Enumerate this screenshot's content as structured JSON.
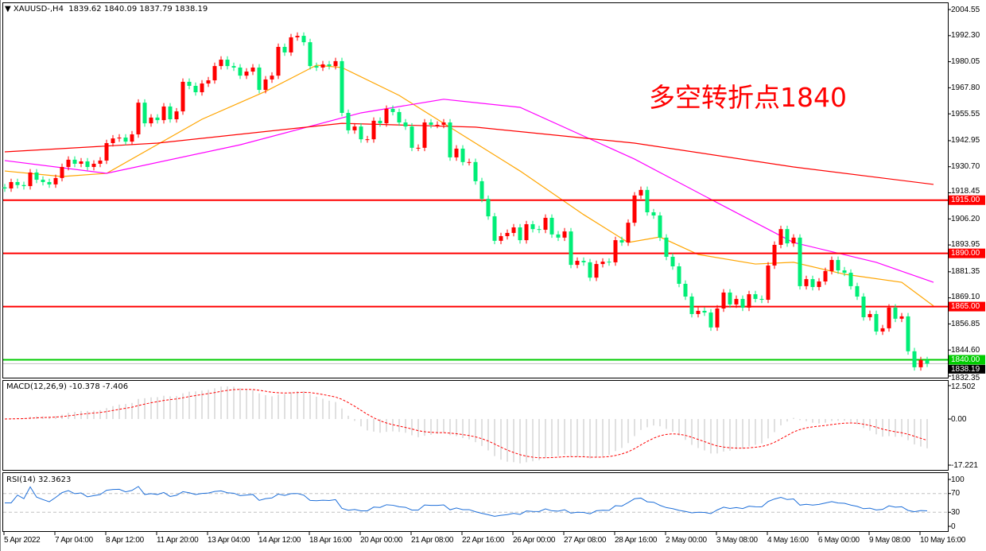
{
  "header": {
    "symbol_label": "XAUUSD-,H4",
    "ohlc": "1839.62 1840.09 1837.79 1838.19"
  },
  "annotation": "多空转折点1840",
  "colors": {
    "up": "#ff0000",
    "down": "#00ee77",
    "ma_fast": "#ffa500",
    "ma_mid": "#ff00ff",
    "ma_slow": "#ff0000",
    "level": "#ff0000",
    "level_support": "#00cc00",
    "macd_hist": "#c0c0c0",
    "macd_signal": "#ff0000",
    "rsi": "#1e6fd9"
  },
  "chart_data": [
    {
      "type": "candlestick",
      "title": "XAUUSD-,H4",
      "ylim": [
        1832.35,
        2004.55
      ],
      "y_ticks": [
        "2004.55",
        "1992.30",
        "1980.05",
        "1967.80",
        "1955.55",
        "1942.95",
        "1930.70",
        "1918.45",
        "1906.20",
        "1893.95",
        "1881.35",
        "1869.10",
        "1856.85",
        "1844.60",
        "1832.35"
      ],
      "x_tick_labels": [
        "5 Apr 2022",
        "7 Apr 04:00",
        "8 Apr 12:00",
        "11 Apr 20:00",
        "13 Apr 04:00",
        "14 Apr 12:00",
        "18 Apr 16:00",
        "20 Apr 00:00",
        "21 Apr 08:00",
        "22 Apr 16:00",
        "26 Apr 00:00",
        "27 Apr 08:00",
        "28 Apr 16:00",
        "2 May 00:00",
        "3 May 08:00",
        "4 May 16:00",
        "6 May 00:00",
        "9 May 08:00",
        "10 May 16:00"
      ],
      "first_open": 1921.0,
      "closes": [
        1920.5,
        1923.5,
        1922.1,
        1921.6,
        1928.0,
        1924.6,
        1923.5,
        1922.4,
        1925.4,
        1930.6,
        1934.0,
        1932.1,
        1933.2,
        1930.6,
        1932.1,
        1933.6,
        1941.8,
        1944.0,
        1944.4,
        1942.5,
        1945.9,
        1960.8,
        1951.1,
        1953.8,
        1952.6,
        1959.0,
        1953.0,
        1956.7,
        1970.6,
        1968.7,
        1965.7,
        1969.8,
        1971.3,
        1978.0,
        1981.0,
        1978.0,
        1977.3,
        1973.5,
        1975.4,
        1977.3,
        1966.8,
        1971.7,
        1973.5,
        1987.0,
        1984.4,
        1991.5,
        1992.2,
        1989.2,
        1978.0,
        1977.3,
        1978.8,
        1978.0,
        1980.3,
        1956.0,
        1947.8,
        1949.6,
        1943.6,
        1943.6,
        1952.3,
        1951.1,
        1957.9,
        1956.4,
        1951.5,
        1949.6,
        1939.6,
        1939.6,
        1951.5,
        1950.4,
        1950.4,
        1951.5,
        1935.1,
        1939.2,
        1932.9,
        1932.9,
        1923.9,
        1915.6,
        1907.4,
        1895.9,
        1898.1,
        1899.6,
        1902.2,
        1896.2,
        1903.7,
        1901.4,
        1901.1,
        1906.7,
        1898.9,
        1897.4,
        1900.3,
        1884.6,
        1886.5,
        1885.8,
        1878.6,
        1885.0,
        1886.1,
        1885.8,
        1896.2,
        1895.1,
        1904.4,
        1917.2,
        1919.8,
        1909.3,
        1907.8,
        1897.4,
        1888.4,
        1883.9,
        1875.7,
        1869.7,
        1861.5,
        1863.0,
        1862.2,
        1855.2,
        1864.1,
        1871.6,
        1866.0,
        1868.6,
        1864.5,
        1870.8,
        1868.6,
        1868.2,
        1884.3,
        1894.0,
        1901.4,
        1894.7,
        1897.4,
        1874.6,
        1877.9,
        1874.2,
        1876.8,
        1881.7,
        1886.9,
        1882.0,
        1880.9,
        1874.6,
        1869.7,
        1860.0,
        1861.5,
        1853.3,
        1854.8,
        1864.5,
        1859.3,
        1860.4,
        1844.0,
        1836.5,
        1839.8,
        1838.2
      ],
      "moving_averages": [
        {
          "color_key": "ma_fast",
          "points": [
            [
              0,
              1928.7
            ],
            [
              9,
              1926.1
            ],
            [
              16,
              1927.6
            ],
            [
              31,
              1953.0
            ],
            [
              41,
              1966.1
            ],
            [
              49,
              1978.4
            ],
            [
              53,
              1977.3
            ],
            [
              62,
              1964.2
            ],
            [
              69,
              1951.1
            ],
            [
              81,
              1928.7
            ],
            [
              91,
              1908.2
            ],
            [
              98,
              1895.1
            ],
            [
              103,
              1897.7
            ],
            [
              109,
              1889.5
            ],
            [
              118,
              1885.0
            ],
            [
              124,
              1885.8
            ],
            [
              132,
              1880.2
            ],
            [
              141,
              1876.4
            ],
            [
              146,
              1865.3
            ]
          ]
        },
        {
          "color_key": "ma_mid",
          "points": [
            [
              0,
              1933.6
            ],
            [
              16,
              1927.6
            ],
            [
              37,
              1941.0
            ],
            [
              56,
              1956.0
            ],
            [
              69,
              1962.4
            ],
            [
              81,
              1958.6
            ],
            [
              99,
              1934.3
            ],
            [
              112,
              1913.8
            ],
            [
              124,
              1895.1
            ],
            [
              137,
              1885.8
            ],
            [
              146,
              1876.4
            ]
          ]
        },
        {
          "color_key": "ma_slow",
          "points": [
            [
              0,
              1937.7
            ],
            [
              24,
              1941.8
            ],
            [
              53,
              1951.1
            ],
            [
              74,
              1949.3
            ],
            [
              99,
              1941.8
            ],
            [
              124,
              1930.6
            ],
            [
              146,
              1922.4
            ]
          ]
        }
      ],
      "levels": [
        {
          "value": 1915.0,
          "label": "1915.00",
          "color_key": "level"
        },
        {
          "value": 1890.0,
          "label": "1890.00",
          "color_key": "level"
        },
        {
          "value": 1865.0,
          "label": "1865.00",
          "color_key": "level"
        },
        {
          "value": 1840.0,
          "label": "1840.00",
          "color_key": "level_support"
        }
      ],
      "bid": {
        "value": 1838.19,
        "label": "1838.19"
      }
    },
    {
      "type": "bar",
      "title": "MACD(12,26,9) -10.378 -7.406",
      "ylim": [
        -17.221,
        12.502
      ],
      "y_ticks": [
        "12.502",
        "0.00",
        "-17.221"
      ]
    },
    {
      "type": "line",
      "title": "RSI(14) 32.3623",
      "ylim": [
        0,
        100
      ],
      "y_ticks": [
        "100",
        "70",
        "30",
        "0"
      ],
      "levels": [
        70,
        30
      ]
    }
  ]
}
